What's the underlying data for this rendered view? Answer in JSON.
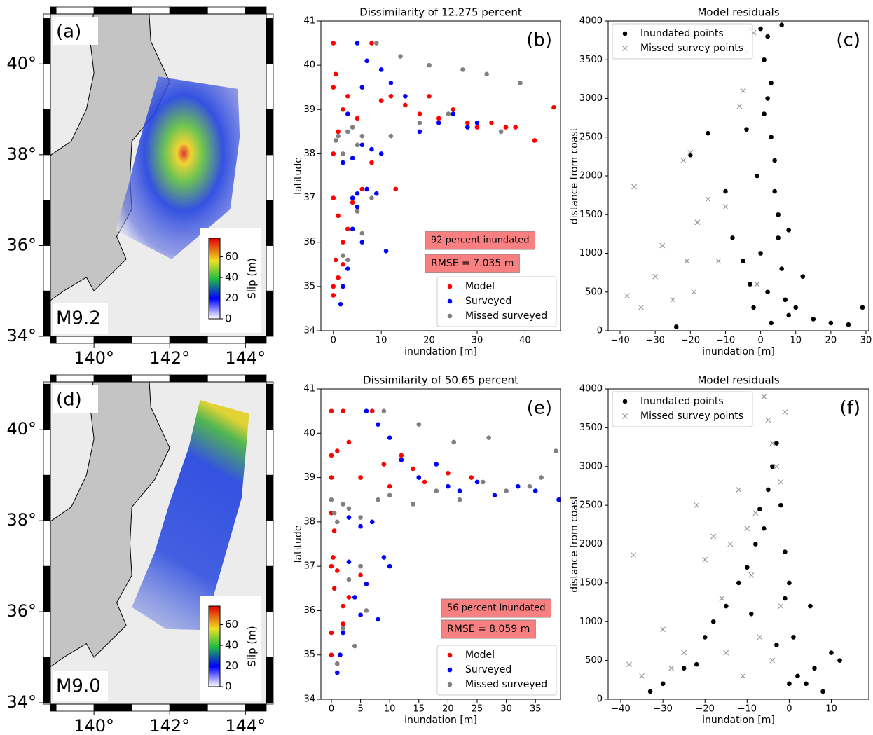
{
  "chart_data": [
    {
      "type": "map",
      "panel_label": "(a)",
      "magnitude_label": "M9.2",
      "xlim": [
        138.85,
        144.55
      ],
      "ylim": [
        34,
        41.1
      ],
      "xticks": [
        {
          "value": 140,
          "label": "140°"
        },
        {
          "value": 142,
          "label": "142°"
        },
        {
          "value": 144,
          "label": "144°"
        }
      ],
      "yticks": [
        {
          "value": 34,
          "label": "34°"
        },
        {
          "value": 36,
          "label": "36°"
        },
        {
          "value": 38,
          "label": "38°"
        },
        {
          "value": 40,
          "label": "40°"
        }
      ],
      "colorbar": {
        "label": "Slip (m)",
        "lim": [
          0,
          78
        ],
        "ticks": [
          0,
          20,
          40,
          60
        ]
      }
    },
    {
      "type": "scatter",
      "title": "Dissimilarity of 12.275 percent",
      "panel_label": "(b)",
      "x_label": "inundation [m]",
      "y_label": "latitude",
      "xlim": [
        -2.6,
        47.4
      ],
      "ylim": [
        34,
        41
      ],
      "xticks": [
        0,
        10,
        20,
        30,
        40
      ],
      "yticks": [
        34,
        35,
        36,
        37,
        38,
        39,
        40,
        41
      ],
      "legend": "lower right",
      "annotations": [
        "92 percent inundated",
        "RMSE = 7.035 m"
      ],
      "series": [
        {
          "name": "Model",
          "color": "#ff0000",
          "marker": "o",
          "x": [
            0,
            0,
            0,
            0.5,
            1,
            2,
            3,
            5,
            8,
            10,
            12,
            15,
            18,
            20,
            22,
            25,
            28,
            30,
            33,
            36,
            38,
            42,
            46,
            0,
            1,
            2,
            3,
            4,
            0,
            0.5,
            6,
            13,
            1,
            2,
            0,
            8
          ],
          "y": [
            40.5,
            38.0,
            39.5,
            39.8,
            38.5,
            39.0,
            39.3,
            38.8,
            40.5,
            39.2,
            39.3,
            39.1,
            38.9,
            39.3,
            38.8,
            39.0,
            38.7,
            38.6,
            38.7,
            38.6,
            38.6,
            38.3,
            39.05,
            37.0,
            36.6,
            35.5,
            36.3,
            36.9,
            34.8,
            35.6,
            37.2,
            37.2,
            35.2,
            36.0,
            35.0,
            37.8
          ]
        },
        {
          "name": "Surveyed",
          "color": "#0000ff",
          "marker": "o",
          "x": [
            5,
            7,
            10,
            3,
            6,
            12,
            15,
            18,
            22,
            25,
            28,
            30,
            8,
            4,
            2,
            6,
            5,
            7,
            9,
            4,
            5,
            6,
            2,
            1.5,
            11,
            4,
            3,
            10
          ],
          "y": [
            40.5,
            40.1,
            39.9,
            38.9,
            39.5,
            39.6,
            39.3,
            38.5,
            38.7,
            38.9,
            38.6,
            38.7,
            38.1,
            37.9,
            37.8,
            38.2,
            37.1,
            37.2,
            37.1,
            36.3,
            36.8,
            36.0,
            35.0,
            34.6,
            35.8,
            37.0,
            35.4,
            38.0
          ]
        },
        {
          "name": "Missed surveyed",
          "color": "#808080",
          "marker": "o",
          "x": [
            9,
            14,
            20,
            27,
            32,
            39,
            1,
            3,
            5,
            12,
            18,
            24,
            35,
            0.5,
            2,
            4,
            6,
            5,
            8,
            3,
            2,
            6
          ],
          "y": [
            40.5,
            40.2,
            40.0,
            39.9,
            39.8,
            39.6,
            38.4,
            38.5,
            38.2,
            38.4,
            38.7,
            38.9,
            38.5,
            38.3,
            38.0,
            38.6,
            38.4,
            36.7,
            37.0,
            35.6,
            35.7,
            36.2
          ]
        }
      ]
    },
    {
      "type": "scatter",
      "title": "Model residuals",
      "panel_label": "(c)",
      "x_label": "inundation [m]",
      "y_label": "distance from coast",
      "xlim": [
        -43.4,
        30.8
      ],
      "ylim": [
        0,
        4000
      ],
      "xticks": [
        {
          "value": -40,
          "label": "−40"
        },
        {
          "value": -30,
          "label": "−30"
        },
        {
          "value": -20,
          "label": "−20"
        },
        {
          "value": -10,
          "label": "−10"
        },
        0,
        10,
        20,
        30
      ],
      "yticks": [
        0,
        500,
        1000,
        1500,
        2000,
        2500,
        3000,
        3500,
        4000
      ],
      "legend": "upper left",
      "series": [
        {
          "name": "Inundated points",
          "color": "#000000",
          "marker": "o",
          "x": [
            -24,
            -20,
            -15,
            -10,
            -8,
            -5,
            -3,
            -2,
            -1,
            0,
            1,
            2,
            3,
            4,
            5,
            6,
            7,
            8,
            10,
            12,
            15,
            20,
            25,
            29,
            2,
            3,
            1,
            4,
            5,
            3,
            -4,
            8,
            0,
            6,
            2
          ],
          "y": [
            50,
            2270,
            2550,
            1800,
            1200,
            900,
            600,
            300,
            2000,
            3900,
            3500,
            3000,
            2500,
            1800,
            1200,
            800,
            400,
            200,
            300,
            700,
            150,
            100,
            80,
            300,
            3800,
            3200,
            2800,
            2200,
            1500,
            100,
            2600,
            1300,
            1000,
            3950,
            500
          ]
        },
        {
          "name": "Missed survey points",
          "color": "#999999",
          "marker": "x",
          "x": [
            -38,
            -36,
            -34,
            -30,
            -28,
            -25,
            -22,
            -20,
            -18,
            -15,
            -12,
            -10,
            -8,
            -6,
            -4,
            -3,
            -2,
            -1,
            -21,
            -19,
            -5
          ],
          "y": [
            450,
            1860,
            300,
            700,
            1100,
            400,
            2200,
            2300,
            1400,
            1700,
            900,
            1600,
            3700,
            2900,
            3600,
            3900,
            3850,
            600,
            900,
            500,
            3100
          ]
        }
      ]
    },
    {
      "type": "map",
      "panel_label": "(d)",
      "magnitude_label": "M9.0",
      "xlim": [
        138.85,
        144.55
      ],
      "ylim": [
        33.97,
        41.05
      ],
      "xticks": [
        {
          "value": 140,
          "label": "140°"
        },
        {
          "value": 142,
          "label": "142°"
        },
        {
          "value": 144,
          "label": "144°"
        }
      ],
      "yticks": [
        {
          "value": 34,
          "label": "34°"
        },
        {
          "value": 36,
          "label": "36°"
        },
        {
          "value": 38,
          "label": "38°"
        },
        {
          "value": 40,
          "label": "40°"
        }
      ],
      "colorbar": {
        "label": "Slip (m)",
        "lim": [
          0,
          78
        ],
        "ticks": [
          0,
          20,
          40,
          60
        ]
      }
    },
    {
      "type": "scatter",
      "title": "Dissimilarity of 50.65 percent",
      "panel_label": "(e)",
      "x_label": "inundation [m]",
      "y_label": "latitude",
      "xlim": [
        -1.8,
        39.3
      ],
      "ylim": [
        34,
        41
      ],
      "xticks": [
        0,
        5,
        10,
        15,
        20,
        25,
        30,
        35
      ],
      "yticks": [
        34,
        35,
        36,
        37,
        38,
        39,
        40,
        41
      ],
      "legend": "lower right",
      "annotations": [
        "56 percent inundated",
        "RMSE = 8.059 m"
      ],
      "series": [
        {
          "name": "Model",
          "color": "#ff0000",
          "marker": "o",
          "x": [
            0,
            0,
            0,
            0,
            0.5,
            1,
            2,
            3,
            5,
            7,
            9,
            10,
            12,
            14,
            16,
            20,
            24,
            0,
            0.5,
            1,
            2,
            3,
            5,
            0,
            1,
            2,
            0,
            0.3
          ],
          "y": [
            40.5,
            39.5,
            39.0,
            38.2,
            37.8,
            39.6,
            40.5,
            39.8,
            39.0,
            40.5,
            39.3,
            38.8,
            39.5,
            39.2,
            38.9,
            39.1,
            39.0,
            37.0,
            36.5,
            36.9,
            35.7,
            36.3,
            36.8,
            35.0,
            34.8,
            36.1,
            35.5,
            37.2
          ]
        },
        {
          "name": "Surveyed",
          "color": "#0000ff",
          "marker": "o",
          "x": [
            6,
            8,
            10,
            12,
            15,
            18,
            20,
            22,
            25,
            28,
            32,
            35,
            39,
            3,
            5,
            7,
            9,
            10,
            6,
            4,
            2,
            5,
            1,
            1.5,
            8,
            3
          ],
          "y": [
            40.5,
            40.2,
            39.9,
            39.4,
            39.0,
            39.3,
            38.8,
            38.7,
            38.9,
            38.6,
            38.8,
            38.7,
            38.5,
            38.1,
            37.9,
            38.0,
            37.2,
            37.0,
            36.6,
            36.3,
            35.5,
            35.9,
            34.6,
            35.0,
            35.8,
            37.1
          ]
        },
        {
          "name": "Missed surveyed",
          "color": "#808080",
          "marker": "o",
          "x": [
            0,
            0.5,
            1,
            2,
            3,
            5,
            8,
            10,
            14,
            18,
            22,
            26,
            30,
            34,
            36,
            38.5,
            9,
            15,
            21,
            27,
            5,
            3,
            6,
            2,
            4,
            1
          ],
          "y": [
            38.5,
            38.2,
            38.0,
            38.4,
            38.3,
            38.1,
            38.5,
            38.6,
            38.4,
            38.7,
            38.5,
            38.9,
            38.7,
            38.8,
            39.0,
            39.6,
            40.5,
            40.2,
            39.8,
            39.9,
            37.0,
            36.7,
            36.0,
            35.6,
            35.2,
            34.8
          ]
        }
      ]
    },
    {
      "type": "scatter",
      "title": "Model residuals",
      "panel_label": "(f)",
      "x_label": "inundation [m]",
      "y_label": "distance from coast",
      "xlim": [
        -43,
        18.9
      ],
      "ylim": [
        0,
        4000
      ],
      "xticks": [
        {
          "value": -40,
          "label": "−40"
        },
        {
          "value": -30,
          "label": "−30"
        },
        {
          "value": -20,
          "label": "−20"
        },
        {
          "value": -10,
          "label": "−10"
        },
        0,
        10
      ],
      "yticks": [
        0,
        500,
        1000,
        1500,
        2000,
        2500,
        3000,
        3500,
        4000
      ],
      "legend": "upper left",
      "series": [
        {
          "name": "Inundated points",
          "color": "#000000",
          "marker": "o",
          "x": [
            -33,
            -30,
            -25,
            -22,
            -20,
            -18,
            -15,
            -12,
            -10,
            -8,
            -6,
            -5,
            -4,
            -3,
            -2,
            -1,
            0,
            1,
            2,
            4,
            6,
            8,
            10,
            12,
            -7,
            -9,
            -3,
            -1,
            0,
            5
          ],
          "y": [
            100,
            200,
            400,
            450,
            800,
            1000,
            1200,
            1500,
            1700,
            2000,
            2200,
            2700,
            3000,
            3300,
            2500,
            1900,
            1500,
            800,
            300,
            200,
            400,
            100,
            600,
            500,
            2450,
            1100,
            700,
            1300,
            200,
            1200
          ]
        },
        {
          "name": "Missed survey points",
          "color": "#999999",
          "marker": "x",
          "x": [
            -38,
            -37,
            -35,
            -30,
            -28,
            -25,
            -22,
            -20,
            -18,
            -16,
            -14,
            -12,
            -10,
            -8,
            -6,
            -5,
            -4,
            -3,
            -2,
            -1,
            -7,
            -9,
            -4,
            -2,
            -15,
            -11
          ],
          "y": [
            450,
            1860,
            300,
            900,
            400,
            600,
            2500,
            1800,
            2100,
            1300,
            2000,
            2700,
            2200,
            2400,
            3900,
            3600,
            3300,
            3000,
            2800,
            3700,
            800,
            1600,
            500,
            1200,
            600,
            300
          ]
        }
      ]
    }
  ]
}
